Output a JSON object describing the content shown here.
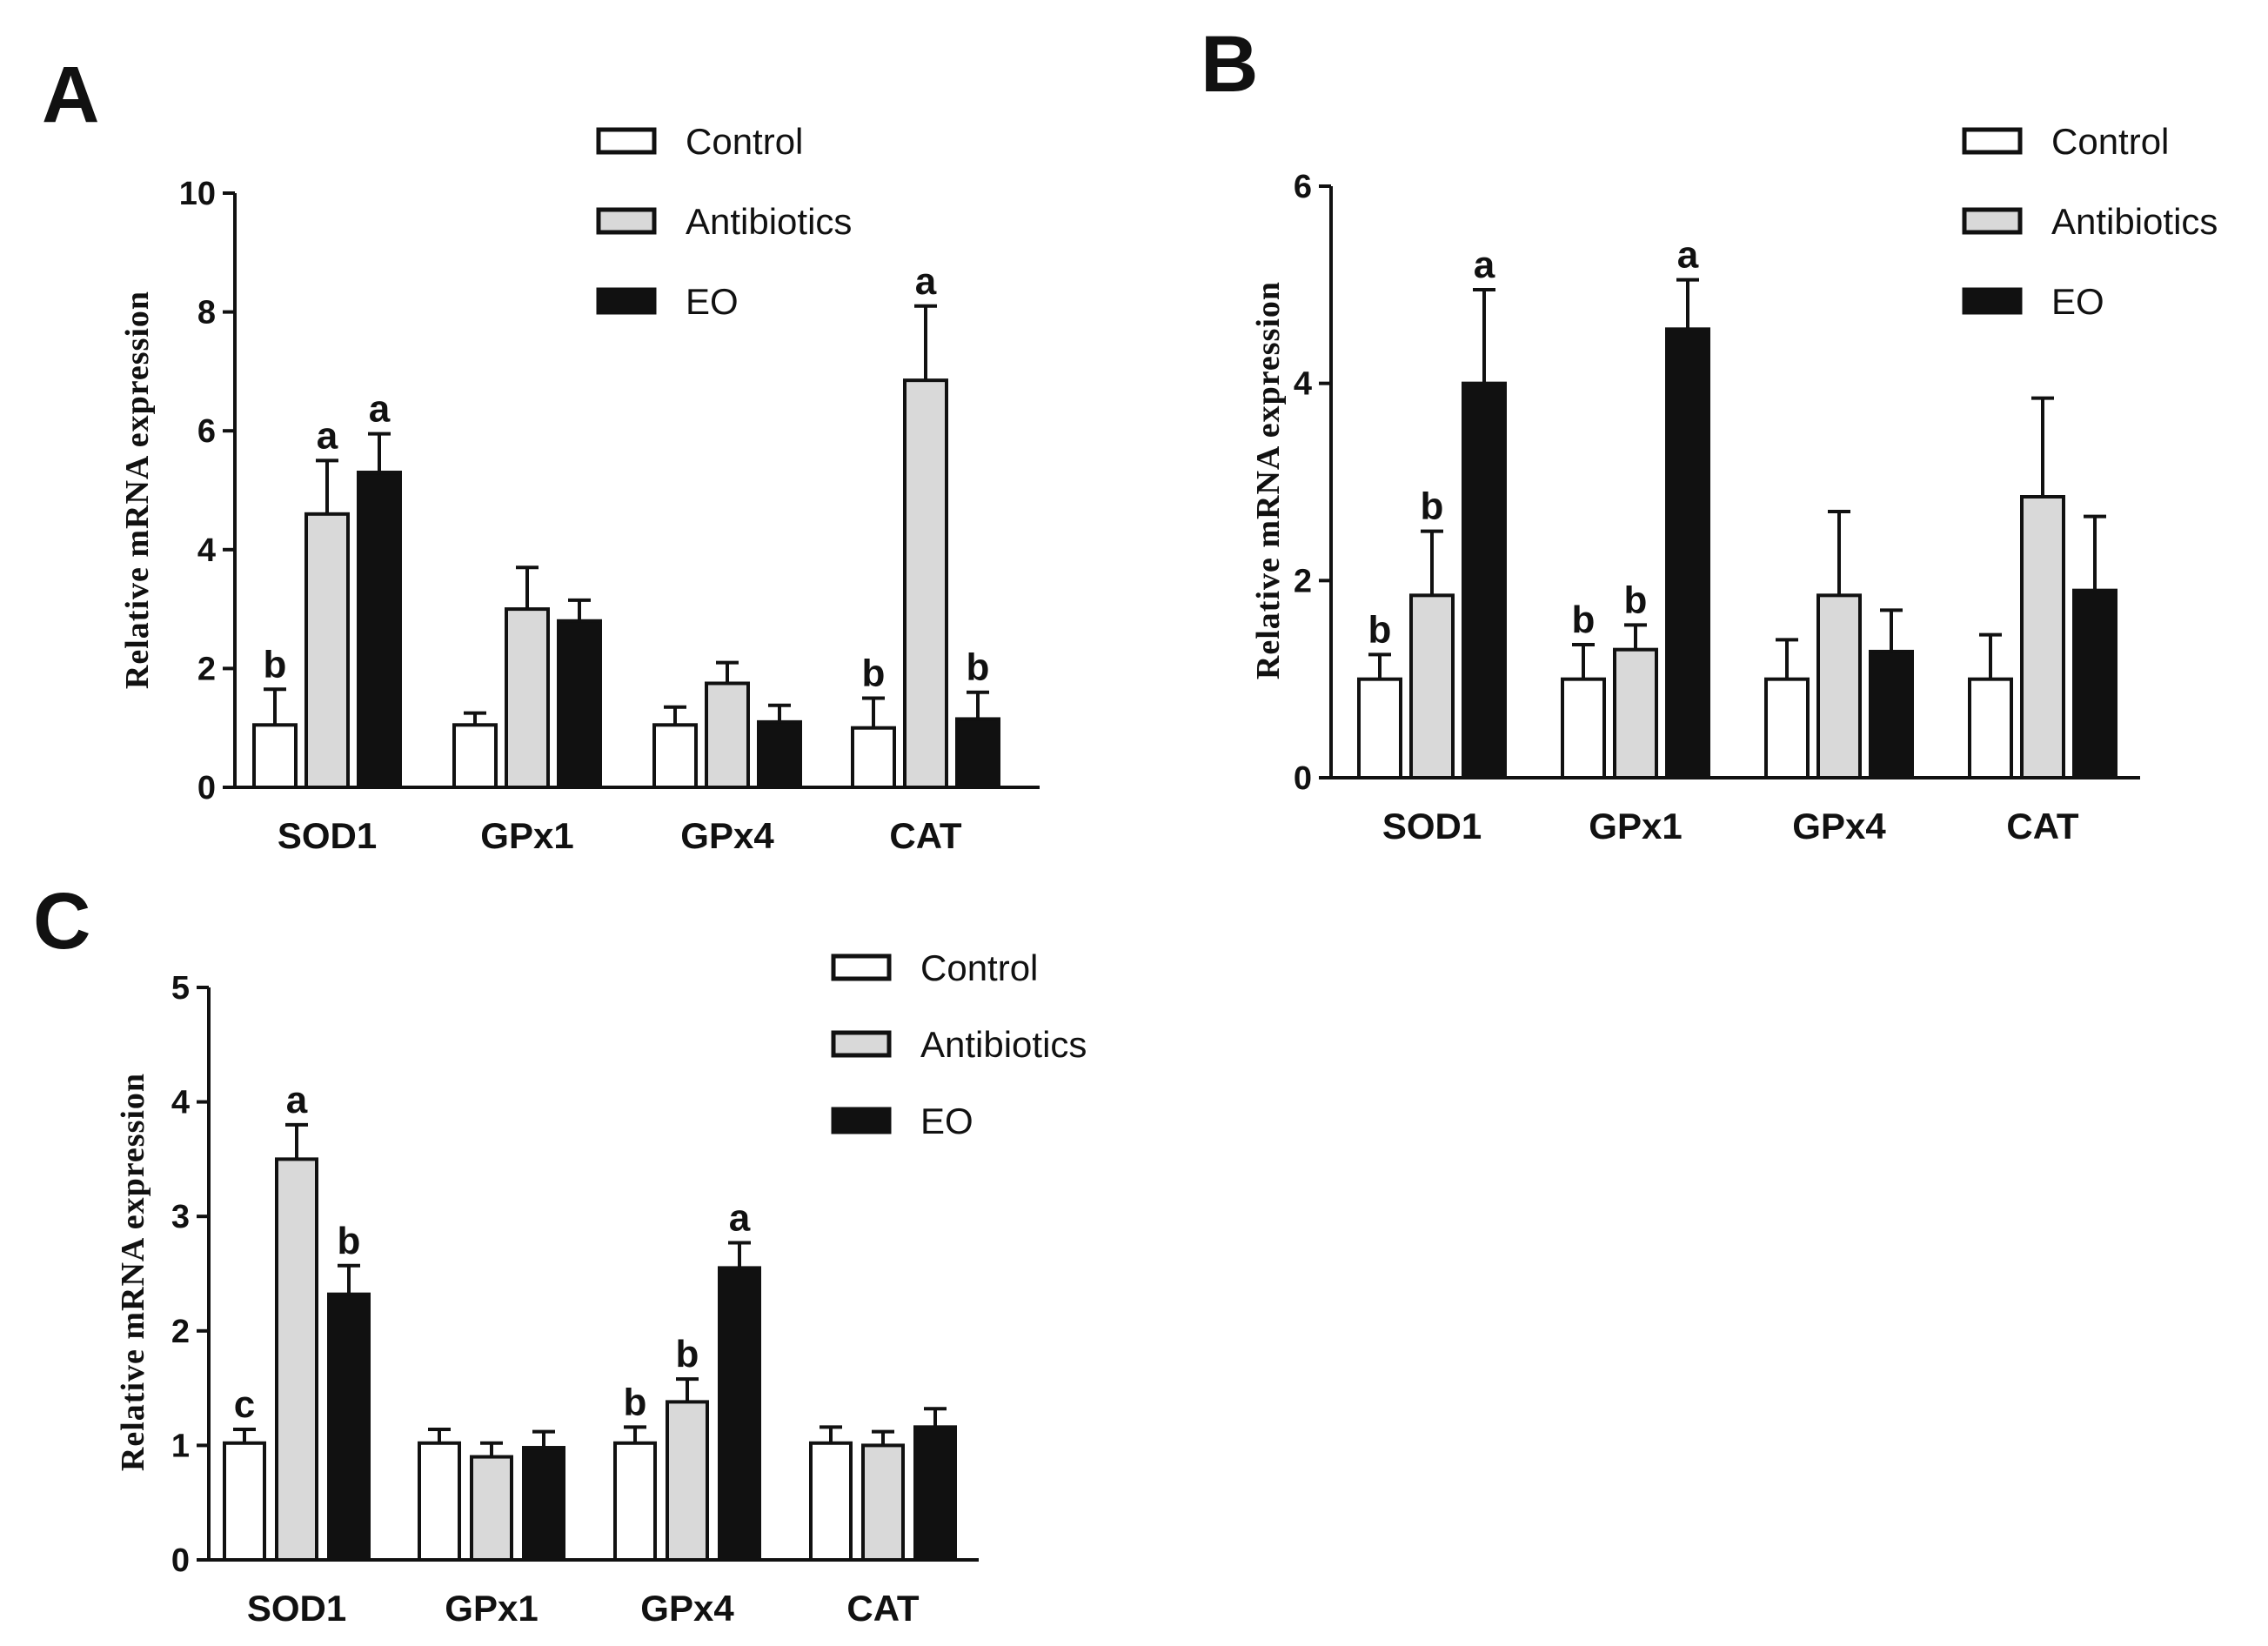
{
  "chart_data": [
    {
      "panel": "A",
      "type": "bar",
      "ylabel": "Relative mRNA expression",
      "ylim": [
        0,
        10
      ],
      "yticks": [
        0,
        2,
        4,
        6,
        8,
        10
      ],
      "categories": [
        "SOD1",
        "GPx1",
        "GPx4",
        "CAT"
      ],
      "series": [
        {
          "name": "Control",
          "color": "#ffffff",
          "values": [
            1.05,
            1.05,
            1.05,
            1.0
          ],
          "errors": [
            0.6,
            0.2,
            0.3,
            0.5
          ],
          "labels": [
            "b",
            "",
            "",
            "b"
          ]
        },
        {
          "name": "Antibiotics",
          "color": "#d9d9d9",
          "values": [
            4.6,
            3.0,
            1.75,
            6.85
          ],
          "errors": [
            0.9,
            0.7,
            0.35,
            1.25
          ],
          "labels": [
            "a",
            "",
            "",
            "a"
          ]
        },
        {
          "name": "EO",
          "color": "#111111",
          "values": [
            5.3,
            2.8,
            1.1,
            1.15
          ],
          "errors": [
            0.65,
            0.35,
            0.28,
            0.45
          ],
          "labels": [
            "a",
            "",
            "",
            "b"
          ]
        }
      ]
    },
    {
      "panel": "B",
      "type": "bar",
      "ylabel": "Relative mRNA expression",
      "ylim": [
        0,
        6
      ],
      "yticks": [
        0,
        2,
        4,
        6
      ],
      "categories": [
        "SOD1",
        "GPx1",
        "GPx4",
        "CAT"
      ],
      "series": [
        {
          "name": "Control",
          "color": "#ffffff",
          "values": [
            1.0,
            1.0,
            1.0,
            1.0
          ],
          "errors": [
            0.25,
            0.35,
            0.4,
            0.45
          ],
          "labels": [
            "b",
            "b",
            "",
            ""
          ]
        },
        {
          "name": "Antibiotics",
          "color": "#d9d9d9",
          "values": [
            1.85,
            1.3,
            1.85,
            2.85
          ],
          "errors": [
            0.65,
            0.25,
            0.85,
            1.0
          ],
          "labels": [
            "b",
            "b",
            "",
            ""
          ]
        },
        {
          "name": "EO",
          "color": "#111111",
          "values": [
            4.0,
            4.55,
            1.28,
            1.9
          ],
          "errors": [
            0.95,
            0.5,
            0.42,
            0.75
          ],
          "labels": [
            "a",
            "a",
            "",
            ""
          ]
        }
      ]
    },
    {
      "panel": "C",
      "type": "bar",
      "ylabel": "Relative mRNA expression",
      "ylim": [
        0,
        5
      ],
      "yticks": [
        0,
        1,
        2,
        3,
        4,
        5
      ],
      "categories": [
        "SOD1",
        "GPx1",
        "GPx4",
        "CAT"
      ],
      "series": [
        {
          "name": "Control",
          "color": "#ffffff",
          "values": [
            1.02,
            1.02,
            1.02,
            1.02
          ],
          "errors": [
            0.12,
            0.12,
            0.14,
            0.14
          ],
          "labels": [
            "c",
            "",
            "b",
            ""
          ]
        },
        {
          "name": "Antibiotics",
          "color": "#d9d9d9",
          "values": [
            3.5,
            0.9,
            1.38,
            1.0
          ],
          "errors": [
            0.3,
            0.12,
            0.2,
            0.12
          ],
          "labels": [
            "a",
            "",
            "b",
            ""
          ]
        },
        {
          "name": "EO",
          "color": "#111111",
          "values": [
            2.32,
            0.98,
            2.55,
            1.16
          ],
          "errors": [
            0.25,
            0.14,
            0.22,
            0.16
          ],
          "labels": [
            "b",
            "",
            "a",
            ""
          ]
        }
      ]
    }
  ]
}
